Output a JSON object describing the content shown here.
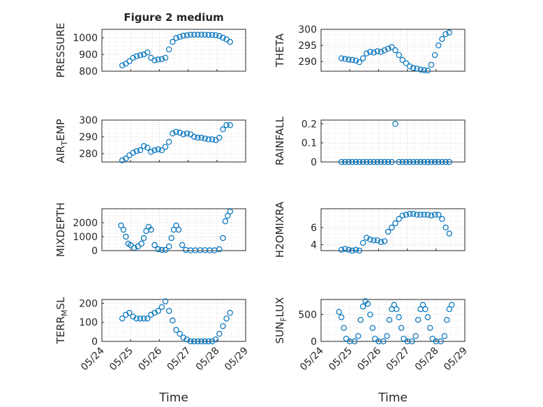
{
  "colors": {
    "marker": "#0072bd",
    "axis": "#262626",
    "grid": "#cdcdcd",
    "background": "#ffffff"
  },
  "figure": {
    "title": "Figure 2 medium",
    "xlabel": "Time"
  },
  "date_ticks": [
    "05/24",
    "05/25",
    "05/26",
    "05/27",
    "05/28",
    "05/29"
  ],
  "chart_data": [
    {
      "type": "scatter",
      "id": "pressure",
      "title": "Figure 2 medium",
      "ylabel": "PRESSURE",
      "ylabel_sub": "",
      "xlim": [
        "2022-05-24",
        "2022-05-29"
      ],
      "ylim": [
        800,
        1050
      ],
      "yticks": [
        800,
        900,
        1000
      ],
      "xtick_labels_shown": false,
      "grid": "on",
      "minor_grid": "on",
      "series": [
        {
          "x": [
            "2022-05-24 17:00",
            "2022-05-24 20:00",
            "2022-05-24 23:00",
            "2022-05-25 02:00",
            "2022-05-25 05:00",
            "2022-05-25 08:00",
            "2022-05-25 11:00",
            "2022-05-25 14:00",
            "2022-05-25 17:00",
            "2022-05-25 20:00",
            "2022-05-25 23:00",
            "2022-05-26 02:00",
            "2022-05-26 05:00",
            "2022-05-26 08:00",
            "2022-05-26 11:00",
            "2022-05-26 14:00",
            "2022-05-26 17:00",
            "2022-05-26 20:00",
            "2022-05-26 23:00",
            "2022-05-27 02:00",
            "2022-05-27 05:00",
            "2022-05-27 08:00",
            "2022-05-27 11:00",
            "2022-05-27 14:00",
            "2022-05-27 17:00",
            "2022-05-27 20:00",
            "2022-05-27 23:00",
            "2022-05-28 02:00",
            "2022-05-28 05:00",
            "2022-05-28 08:00",
            "2022-05-28 11:00"
          ],
          "y": [
            835,
            845,
            860,
            880,
            890,
            895,
            900,
            912,
            880,
            865,
            870,
            872,
            880,
            930,
            975,
            998,
            1005,
            1012,
            1015,
            1018,
            1018,
            1018,
            1018,
            1018,
            1017,
            1017,
            1015,
            1010,
            1000,
            990,
            975
          ]
        }
      ]
    },
    {
      "type": "scatter",
      "id": "theta",
      "ylabel": "THETA",
      "ylabel_sub": "",
      "xlim": [
        "2022-05-24",
        "2022-05-29"
      ],
      "ylim": [
        287,
        300
      ],
      "yticks": [
        290,
        295,
        300
      ],
      "xtick_labels_shown": false,
      "grid": "on",
      "minor_grid": "on",
      "series": [
        {
          "x": [
            "2022-05-24 17:00",
            "2022-05-24 20:00",
            "2022-05-24 23:00",
            "2022-05-25 02:00",
            "2022-05-25 05:00",
            "2022-05-25 08:00",
            "2022-05-25 11:00",
            "2022-05-25 14:00",
            "2022-05-25 17:00",
            "2022-05-25 20:00",
            "2022-05-25 23:00",
            "2022-05-26 02:00",
            "2022-05-26 05:00",
            "2022-05-26 08:00",
            "2022-05-26 11:00",
            "2022-05-26 14:00",
            "2022-05-26 17:00",
            "2022-05-26 20:00",
            "2022-05-26 23:00",
            "2022-05-27 02:00",
            "2022-05-27 05:00",
            "2022-05-27 08:00",
            "2022-05-27 11:00",
            "2022-05-27 14:00",
            "2022-05-27 17:00",
            "2022-05-27 20:00",
            "2022-05-27 23:00",
            "2022-05-28 02:00",
            "2022-05-28 05:00",
            "2022-05-28 08:00",
            "2022-05-28 11:00"
          ],
          "y": [
            291,
            290.8,
            290.6,
            290.5,
            290.3,
            289.8,
            291,
            292.5,
            293,
            292.8,
            293.2,
            293,
            293.5,
            294,
            294.5,
            293.5,
            292,
            290.5,
            289.5,
            288.5,
            288,
            287.8,
            287.5,
            287.3,
            287.2,
            289,
            292,
            295,
            297,
            298.5,
            299
          ]
        }
      ]
    },
    {
      "type": "scatter",
      "id": "air-temp",
      "ylabel": "AIR",
      "ylabel_sub": "T",
      "ylabel_suffix": "EMP",
      "xlim": [
        "2022-05-24",
        "2022-05-29"
      ],
      "ylim": [
        275,
        300
      ],
      "yticks": [
        280,
        290,
        300
      ],
      "xtick_labels_shown": false,
      "grid": "on",
      "minor_grid": "on",
      "series": [
        {
          "x": [
            "2022-05-24 17:00",
            "2022-05-24 20:00",
            "2022-05-24 23:00",
            "2022-05-25 02:00",
            "2022-05-25 05:00",
            "2022-05-25 08:00",
            "2022-05-25 11:00",
            "2022-05-25 14:00",
            "2022-05-25 17:00",
            "2022-05-25 20:00",
            "2022-05-25 23:00",
            "2022-05-26 02:00",
            "2022-05-26 05:00",
            "2022-05-26 08:00",
            "2022-05-26 11:00",
            "2022-05-26 14:00",
            "2022-05-26 17:00",
            "2022-05-26 20:00",
            "2022-05-26 23:00",
            "2022-05-27 02:00",
            "2022-05-27 05:00",
            "2022-05-27 08:00",
            "2022-05-27 11:00",
            "2022-05-27 14:00",
            "2022-05-27 17:00",
            "2022-05-27 20:00",
            "2022-05-27 23:00",
            "2022-05-28 02:00",
            "2022-05-28 05:00",
            "2022-05-28 08:00",
            "2022-05-28 11:00"
          ],
          "y": [
            276,
            277,
            279,
            280.5,
            281.5,
            282,
            284.5,
            283.5,
            281,
            282,
            282.5,
            282,
            284,
            287,
            292,
            293,
            292.5,
            291.5,
            292,
            291.5,
            290,
            289.5,
            289.5,
            289,
            288.5,
            288.5,
            288,
            289.5,
            294.5,
            297,
            297
          ]
        }
      ]
    },
    {
      "type": "scatter",
      "id": "rainfall",
      "ylabel": "RAINFALL",
      "ylabel_sub": "",
      "xlim": [
        "2022-05-24",
        "2022-05-29"
      ],
      "ylim": [
        0,
        0.22
      ],
      "yticks": [
        0,
        0.1,
        0.2
      ],
      "xtick_labels_shown": false,
      "grid": "on",
      "minor_grid": "on",
      "series": [
        {
          "x": [
            "2022-05-24 17:00",
            "2022-05-24 20:00",
            "2022-05-24 23:00",
            "2022-05-25 02:00",
            "2022-05-25 05:00",
            "2022-05-25 08:00",
            "2022-05-25 11:00",
            "2022-05-25 14:00",
            "2022-05-25 17:00",
            "2022-05-25 20:00",
            "2022-05-25 23:00",
            "2022-05-26 02:00",
            "2022-05-26 05:00",
            "2022-05-26 08:00",
            "2022-05-26 11:00",
            "2022-05-26 14:00",
            "2022-05-26 17:00",
            "2022-05-26 20:00",
            "2022-05-26 23:00",
            "2022-05-27 02:00",
            "2022-05-27 05:00",
            "2022-05-27 08:00",
            "2022-05-27 11:00",
            "2022-05-27 14:00",
            "2022-05-27 17:00",
            "2022-05-27 20:00",
            "2022-05-27 23:00",
            "2022-05-28 02:00",
            "2022-05-28 05:00",
            "2022-05-28 08:00",
            "2022-05-28 11:00"
          ],
          "y": [
            0,
            0,
            0,
            0,
            0,
            0,
            0,
            0,
            0,
            0,
            0,
            0,
            0,
            0,
            0,
            0.2,
            0,
            0,
            0,
            0,
            0,
            0,
            0,
            0,
            0,
            0,
            0,
            0,
            0,
            0,
            0
          ]
        }
      ]
    },
    {
      "type": "scatter",
      "id": "mixdepth",
      "ylabel": "MIXDEPTH",
      "ylabel_sub": "",
      "xlim": [
        "2022-05-24",
        "2022-05-29"
      ],
      "ylim": [
        0,
        3000
      ],
      "yticks": [
        0,
        1000,
        2000
      ],
      "xtick_labels_shown": false,
      "grid": "on",
      "minor_grid": "on",
      "series": [
        {
          "x": [
            "2022-05-24 16:00",
            "2022-05-24 18:00",
            "2022-05-24 20:00",
            "2022-05-24 22:00",
            "2022-05-25 00:00",
            "2022-05-25 03:00",
            "2022-05-25 06:00",
            "2022-05-25 09:00",
            "2022-05-25 11:00",
            "2022-05-25 13:00",
            "2022-05-25 15:00",
            "2022-05-25 17:00",
            "2022-05-25 20:00",
            "2022-05-25 23:00",
            "2022-05-26 02:00",
            "2022-05-26 05:00",
            "2022-05-26 08:00",
            "2022-05-26 10:00",
            "2022-05-26 12:00",
            "2022-05-26 14:00",
            "2022-05-26 16:00",
            "2022-05-26 19:00",
            "2022-05-26 22:00",
            "2022-05-27 02:00",
            "2022-05-27 06:00",
            "2022-05-27 10:00",
            "2022-05-27 14:00",
            "2022-05-27 18:00",
            "2022-05-27 22:00",
            "2022-05-28 02:00",
            "2022-05-28 05:00",
            "2022-05-28 07:00",
            "2022-05-28 09:00",
            "2022-05-28 11:00"
          ],
          "y": [
            1800,
            1500,
            1000,
            500,
            400,
            200,
            300,
            500,
            900,
            1400,
            1700,
            1500,
            400,
            100,
            50,
            50,
            300,
            900,
            1500,
            1800,
            1500,
            400,
            50,
            20,
            20,
            30,
            30,
            20,
            20,
            100,
            900,
            2100,
            2500,
            2800
          ]
        }
      ]
    },
    {
      "type": "scatter",
      "id": "h2omixra",
      "ylabel": "H2OMIXRA",
      "ylabel_sub": "",
      "xlim": [
        "2022-05-24",
        "2022-05-29"
      ],
      "ylim": [
        3.3,
        8.2
      ],
      "yticks": [
        4,
        6
      ],
      "xtick_labels_shown": false,
      "grid": "on",
      "minor_grid": "on",
      "series": [
        {
          "x": [
            "2022-05-24 17:00",
            "2022-05-24 20:00",
            "2022-05-24 23:00",
            "2022-05-25 02:00",
            "2022-05-25 05:00",
            "2022-05-25 08:00",
            "2022-05-25 11:00",
            "2022-05-25 14:00",
            "2022-05-25 17:00",
            "2022-05-25 20:00",
            "2022-05-25 23:00",
            "2022-05-26 02:00",
            "2022-05-26 05:00",
            "2022-05-26 08:00",
            "2022-05-26 11:00",
            "2022-05-26 14:00",
            "2022-05-26 17:00",
            "2022-05-26 20:00",
            "2022-05-26 23:00",
            "2022-05-27 02:00",
            "2022-05-27 05:00",
            "2022-05-27 08:00",
            "2022-05-27 11:00",
            "2022-05-27 14:00",
            "2022-05-27 17:00",
            "2022-05-27 20:00",
            "2022-05-27 23:00",
            "2022-05-28 02:00",
            "2022-05-28 05:00",
            "2022-05-28 08:00",
            "2022-05-28 11:00"
          ],
          "y": [
            3.4,
            3.5,
            3.4,
            3.3,
            3.4,
            3.3,
            4.2,
            4.8,
            4.6,
            4.5,
            4.5,
            4.3,
            4.4,
            5.5,
            6,
            6.5,
            7,
            7.4,
            7.5,
            7.6,
            7.6,
            7.5,
            7.5,
            7.5,
            7.5,
            7.4,
            7.5,
            7.5,
            7,
            6,
            5.3
          ]
        }
      ]
    },
    {
      "type": "scatter",
      "id": "terr-msl",
      "ylabel": "TERR",
      "ylabel_sub": "M",
      "ylabel_suffix": "SL",
      "xlim": [
        "2022-05-24",
        "2022-05-29"
      ],
      "ylim": [
        0,
        220
      ],
      "yticks": [
        0,
        100,
        200
      ],
      "xtick_labels_shown": true,
      "grid": "on",
      "minor_grid": "on",
      "series": [
        {
          "x": [
            "2022-05-24 17:00",
            "2022-05-24 20:00",
            "2022-05-24 23:00",
            "2022-05-25 02:00",
            "2022-05-25 05:00",
            "2022-05-25 08:00",
            "2022-05-25 11:00",
            "2022-05-25 14:00",
            "2022-05-25 17:00",
            "2022-05-25 20:00",
            "2022-05-25 23:00",
            "2022-05-26 02:00",
            "2022-05-26 05:00",
            "2022-05-26 08:00",
            "2022-05-26 11:00",
            "2022-05-26 14:00",
            "2022-05-26 17:00",
            "2022-05-26 20:00",
            "2022-05-26 23:00",
            "2022-05-27 02:00",
            "2022-05-27 05:00",
            "2022-05-27 08:00",
            "2022-05-27 11:00",
            "2022-05-27 14:00",
            "2022-05-27 17:00",
            "2022-05-27 20:00",
            "2022-05-27 23:00",
            "2022-05-28 02:00",
            "2022-05-28 05:00",
            "2022-05-28 08:00",
            "2022-05-28 11:00"
          ],
          "y": [
            120,
            140,
            150,
            130,
            120,
            120,
            120,
            120,
            140,
            150,
            160,
            180,
            210,
            160,
            110,
            60,
            40,
            20,
            10,
            0,
            0,
            0,
            0,
            0,
            0,
            0,
            10,
            40,
            80,
            120,
            150
          ]
        }
      ]
    },
    {
      "type": "scatter",
      "id": "sun-flux",
      "ylabel": "SUN",
      "ylabel_sub": "F",
      "ylabel_suffix": "LUX",
      "xlim": [
        "2022-05-24",
        "2022-05-29"
      ],
      "ylim": [
        0,
        780
      ],
      "yticks": [
        0,
        500
      ],
      "xtick_labels_shown": true,
      "grid": "on",
      "minor_grid": "on",
      "series": [
        {
          "x": [
            "2022-05-24 15:00",
            "2022-05-24 17:00",
            "2022-05-24 19:00",
            "2022-05-24 21:00",
            "2022-05-25 00:00",
            "2022-05-25 04:00",
            "2022-05-25 07:00",
            "2022-05-25 09:00",
            "2022-05-25 11:00",
            "2022-05-25 13:00",
            "2022-05-25 15:00",
            "2022-05-25 17:00",
            "2022-05-25 19:00",
            "2022-05-25 21:00",
            "2022-05-26 00:00",
            "2022-05-26 04:00",
            "2022-05-26 07:00",
            "2022-05-26 09:00",
            "2022-05-26 11:00",
            "2022-05-26 13:00",
            "2022-05-26 15:00",
            "2022-05-26 17:00",
            "2022-05-26 19:00",
            "2022-05-26 21:00",
            "2022-05-27 00:00",
            "2022-05-27 04:00",
            "2022-05-27 07:00",
            "2022-05-27 09:00",
            "2022-05-27 11:00",
            "2022-05-27 13:00",
            "2022-05-27 15:00",
            "2022-05-27 17:00",
            "2022-05-27 19:00",
            "2022-05-27 21:00",
            "2022-05-28 00:00",
            "2022-05-28 04:00",
            "2022-05-28 07:00",
            "2022-05-28 09:00",
            "2022-05-28 11:00",
            "2022-05-28 13:00"
          ],
          "y": [
            550,
            450,
            250,
            50,
            0,
            0,
            100,
            400,
            650,
            750,
            700,
            500,
            250,
            50,
            0,
            0,
            100,
            400,
            600,
            680,
            600,
            450,
            250,
            50,
            0,
            0,
            100,
            400,
            600,
            680,
            600,
            450,
            250,
            50,
            0,
            0,
            100,
            400,
            600,
            680
          ]
        }
      ]
    }
  ]
}
